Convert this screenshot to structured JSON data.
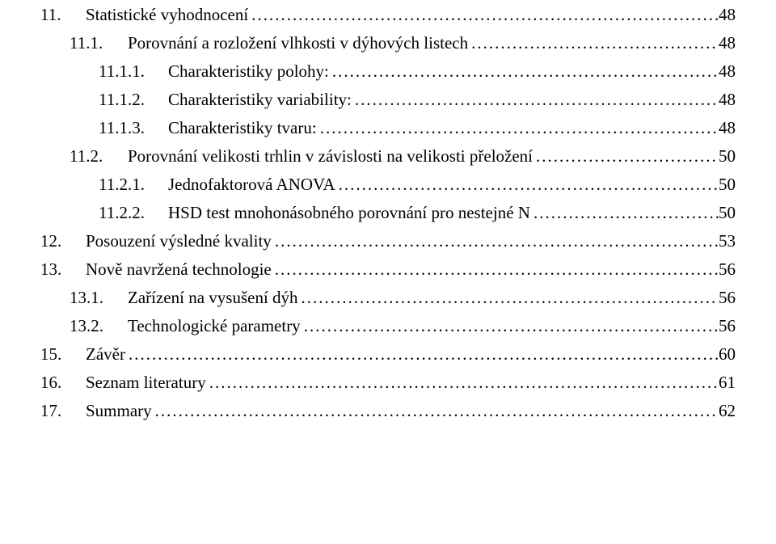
{
  "font": {
    "family": "Times New Roman",
    "size_pt": 16,
    "color": "#000000"
  },
  "background_color": "#ffffff",
  "toc": [
    {
      "level": 0,
      "num": "11.",
      "title": "Statistické vyhodnocení",
      "page": "48"
    },
    {
      "level": 1,
      "num": "11.1.",
      "title": "Porovnání a rozložení vlhkosti v dýhových listech",
      "page": "48"
    },
    {
      "level": 2,
      "num": "11.1.1.",
      "title": "Charakteristiky polohy:",
      "page": "48"
    },
    {
      "level": 2,
      "num": "11.1.2.",
      "title": "Charakteristiky variability:",
      "page": "48"
    },
    {
      "level": 2,
      "num": "11.1.3.",
      "title": "Charakteristiky tvaru:",
      "page": "48"
    },
    {
      "level": 1,
      "num": "11.2.",
      "title": "Porovnání velikosti trhlin v závislosti na velikosti přeložení",
      "page": "50"
    },
    {
      "level": 2,
      "num": "11.2.1.",
      "title": "Jednofaktorová ANOVA",
      "page": "50"
    },
    {
      "level": 2,
      "num": "11.2.2.",
      "title": "HSD test mnohonásobného porovnání pro nestejné N",
      "page": "50"
    },
    {
      "level": 0,
      "num": "12.",
      "title": "Posouzení výsledné kvality",
      "page": "53"
    },
    {
      "level": 0,
      "num": "13.",
      "title": "Nově navržená technologie",
      "page": "56"
    },
    {
      "level": 1,
      "num": "13.1.",
      "title": "Zařízení na vysušení dýh",
      "page": "56"
    },
    {
      "level": 1,
      "num": "13.2.",
      "title": "Technologické parametry",
      "page": "56"
    },
    {
      "level": 0,
      "num": "15.",
      "title": "Závěr",
      "page": "60"
    },
    {
      "level": 0,
      "num": "16.",
      "title": "Seznam literatury",
      "page": "61"
    },
    {
      "level": 0,
      "num": "17.",
      "title": "Summary",
      "page": "62"
    }
  ]
}
